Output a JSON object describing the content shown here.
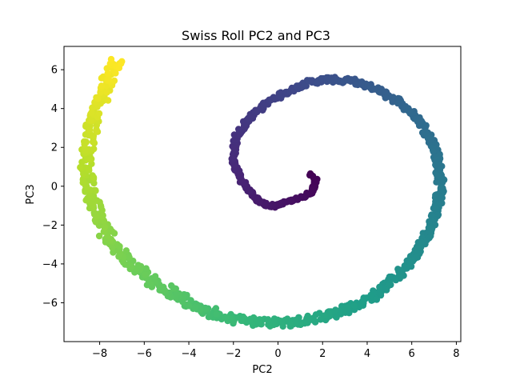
{
  "chart_data": {
    "type": "scatter",
    "title": "Swiss Roll PC2 and PC3",
    "xlabel": "PC2",
    "ylabel": "PC3",
    "xlim": [
      -9.6,
      8.2
    ],
    "ylim": [
      -8.0,
      7.2
    ],
    "xticks": [
      -8,
      -6,
      -4,
      -2,
      0,
      2,
      4,
      6,
      8
    ],
    "yticks": [
      -6,
      -4,
      -2,
      0,
      2,
      4,
      6
    ],
    "grid": false,
    "colormap": "viridis",
    "spiral_path": [
      [
        1.4,
        0.6
      ],
      [
        1.7,
        0.3
      ],
      [
        1.5,
        -0.3
      ],
      [
        1.0,
        -0.6
      ],
      [
        0.5,
        -0.8
      ],
      [
        0.0,
        -1.0
      ],
      [
        -0.5,
        -1.0
      ],
      [
        -1.0,
        -0.6
      ],
      [
        -1.6,
        0.2
      ],
      [
        -2.0,
        1.2
      ],
      [
        -1.9,
        2.5
      ],
      [
        -1.3,
        3.5
      ],
      [
        -0.5,
        4.3
      ],
      [
        0.3,
        4.8
      ],
      [
        1.2,
        5.3
      ],
      [
        2.2,
        5.5
      ],
      [
        3.3,
        5.4
      ],
      [
        4.4,
        5.0
      ],
      [
        5.5,
        4.3
      ],
      [
        6.3,
        3.5
      ],
      [
        6.9,
        2.4
      ],
      [
        7.2,
        1.2
      ],
      [
        7.3,
        0.0
      ],
      [
        7.1,
        -1.4
      ],
      [
        6.5,
        -3.0
      ],
      [
        5.6,
        -4.3
      ],
      [
        4.5,
        -5.5
      ],
      [
        3.2,
        -6.3
      ],
      [
        1.8,
        -6.8
      ],
      [
        0.5,
        -7.0
      ],
      [
        -1.0,
        -7.0
      ],
      [
        -2.5,
        -6.7
      ],
      [
        -4.0,
        -6.0
      ],
      [
        -5.5,
        -5.0
      ],
      [
        -6.8,
        -3.8
      ],
      [
        -7.8,
        -2.3
      ],
      [
        -8.4,
        -0.5
      ],
      [
        -8.6,
        1.2
      ],
      [
        -8.4,
        2.9
      ],
      [
        -8.0,
        4.2
      ],
      [
        -7.6,
        5.5
      ],
      [
        -7.2,
        6.4
      ]
    ],
    "colors": [
      "#440154",
      "#482878",
      "#3e4989",
      "#31688e",
      "#26828e",
      "#1f9e89",
      "#35b779",
      "#6ece58",
      "#b5de2b",
      "#fde725"
    ]
  }
}
